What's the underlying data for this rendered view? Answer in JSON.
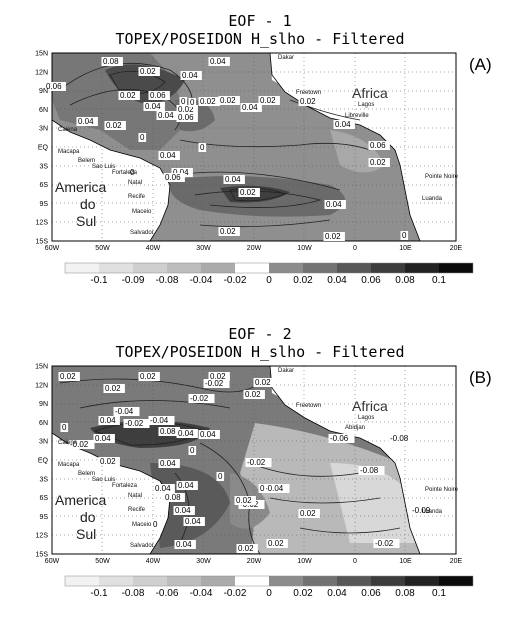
{
  "panels": [
    {
      "letter": "(A)",
      "title_line1": "EOF - 1",
      "title_line2": "TOPEX/POSEIDON H_slho - Filtered",
      "contour_labels": [
        "0.08",
        "0.02",
        "0.04",
        "0.06",
        "0.02",
        "0.04",
        "0.06",
        "0.02",
        "0.04",
        "0",
        "0.02",
        "0.02",
        "0.02",
        "0.04",
        "0.06",
        "0.02",
        "0.04",
        "0.02",
        "0.04",
        "0.06",
        "0.04",
        "0.02",
        "0.04",
        "0.02",
        "0.02",
        "0",
        "0.04",
        "0.02",
        "0.06",
        "0.04",
        "0",
        "0.04",
        "0",
        "0",
        "0"
      ],
      "colorbar": [
        "-0.1",
        "-0.09",
        "-0.08",
        "-0.04",
        "-0.02",
        "0",
        "0.02",
        "0.04",
        "0.06",
        "0.08",
        "0.1"
      ]
    },
    {
      "letter": "(B)",
      "title_line1": "EOF - 2",
      "title_line2": "TOPEX/POSEIDON H_slho - Filtered",
      "contour_labels": [
        "0.02",
        "0.02",
        "0.02",
        "-0.02",
        "0.02",
        "0.02",
        "-0.02",
        "-0.04",
        "0.04",
        "-0.04",
        "-0.02",
        "0.04",
        "-0.02",
        "0.08",
        "0.02",
        "0.04",
        "0",
        "-0.06",
        "-0.08",
        "0.04",
        "-0.08",
        "0.04",
        "-0.04",
        "-0.02",
        "0.02",
        "0",
        "0.08",
        "0.04",
        "0.04",
        "-0.09",
        "0.04",
        "-0.02",
        "0",
        "0.02",
        "0.02",
        "0.04",
        "0.02",
        "0.04",
        "0",
        "0",
        "-0.02",
        "0.02"
      ],
      "colorbar": [
        "-0.1",
        "-0.08",
        "-0.06",
        "-0.04",
        "-0.02",
        "0",
        "0.02",
        "0.04",
        "0.06",
        "0.08",
        "0.1"
      ]
    }
  ],
  "axes": {
    "y_ticks": [
      "15N",
      "12N",
      "9N",
      "6N",
      "3N",
      "EQ",
      "3S",
      "6S",
      "9S",
      "12S",
      "15S"
    ],
    "x_ticks": [
      "60W",
      "50W",
      "40W",
      "30W",
      "20W",
      "10W",
      "0",
      "10E",
      "20E"
    ]
  },
  "regions": {
    "continent_africa": "Africa",
    "continent_america_1": "America",
    "continent_america_2": "do",
    "continent_america_3": "Sul"
  },
  "cities_left": [
    "Caiena",
    "Macapa",
    "Belem",
    "Sao Luis",
    "Fortaleza",
    "Natal",
    "Recife",
    "Maceio",
    "Salvador"
  ],
  "cities_right": [
    "Dakar",
    "Freetown",
    "Lagos",
    "Libreville",
    "Pointe Noire",
    "Luanda"
  ],
  "cities_right_extra": [
    "Abidjan"
  ]
}
